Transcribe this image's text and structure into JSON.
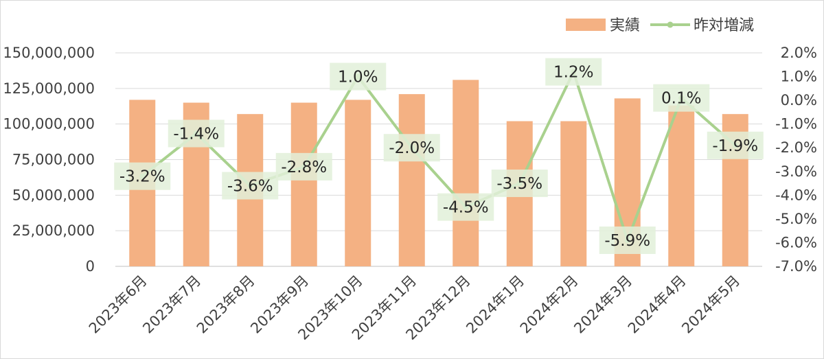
{
  "chart_data": {
    "type": "bar+line",
    "title": "",
    "categories": [
      "2023年6月",
      "2023年7月",
      "2023年8月",
      "2023年9月",
      "2023年10月",
      "2023年11月",
      "2023年12月",
      "2024年1月",
      "2024年2月",
      "2024年3月",
      "2024年4月",
      "2024年5月"
    ],
    "series": [
      {
        "name": "実績",
        "type": "bar",
        "axis": "left",
        "color": "#F4B183",
        "values": [
          117000000,
          115000000,
          107000000,
          115000000,
          117000000,
          121000000,
          131000000,
          102000000,
          102000000,
          118000000,
          113000000,
          107000000
        ]
      },
      {
        "name": "昨対増減",
        "type": "line",
        "axis": "right",
        "color": "#A9D18E",
        "values": [
          -3.2,
          -1.4,
          -3.6,
          -2.8,
          1.0,
          -2.0,
          -4.5,
          -3.5,
          1.2,
          -5.9,
          0.1,
          -1.9
        ],
        "labels": [
          "-3.2%",
          "-1.4%",
          "-3.6%",
          "-2.8%",
          "1.0%",
          "-2.0%",
          "-4.5%",
          "-3.5%",
          "1.2%",
          "-5.9%",
          "0.1%",
          "-1.9%"
        ]
      }
    ],
    "left_axis": {
      "ylim": [
        0,
        150000000
      ],
      "ticks": [
        0,
        25000000,
        50000000,
        75000000,
        100000000,
        125000000,
        150000000
      ],
      "tick_labels": [
        "0",
        "25,000,000",
        "50,000,000",
        "75,000,000",
        "100,000,000",
        "125,000,000",
        "150,000,000"
      ]
    },
    "right_axis": {
      "ylim": [
        -7.0,
        2.0
      ],
      "ticks": [
        2.0,
        1.0,
        0.0,
        -1.0,
        -2.0,
        -3.0,
        -4.0,
        -5.0,
        -6.0,
        -7.0
      ],
      "tick_labels": [
        "2.0%",
        "1.0%",
        "0.0%",
        "-1.0%",
        "-2.0%",
        "-3.0%",
        "-4.0%",
        "-5.0%",
        "-6.0%",
        "-7.0%"
      ]
    },
    "grid": true,
    "legend": {
      "position": "top-right",
      "items": [
        "実績",
        "昨対増減"
      ]
    },
    "label_box_color": "#E2F0D9"
  }
}
